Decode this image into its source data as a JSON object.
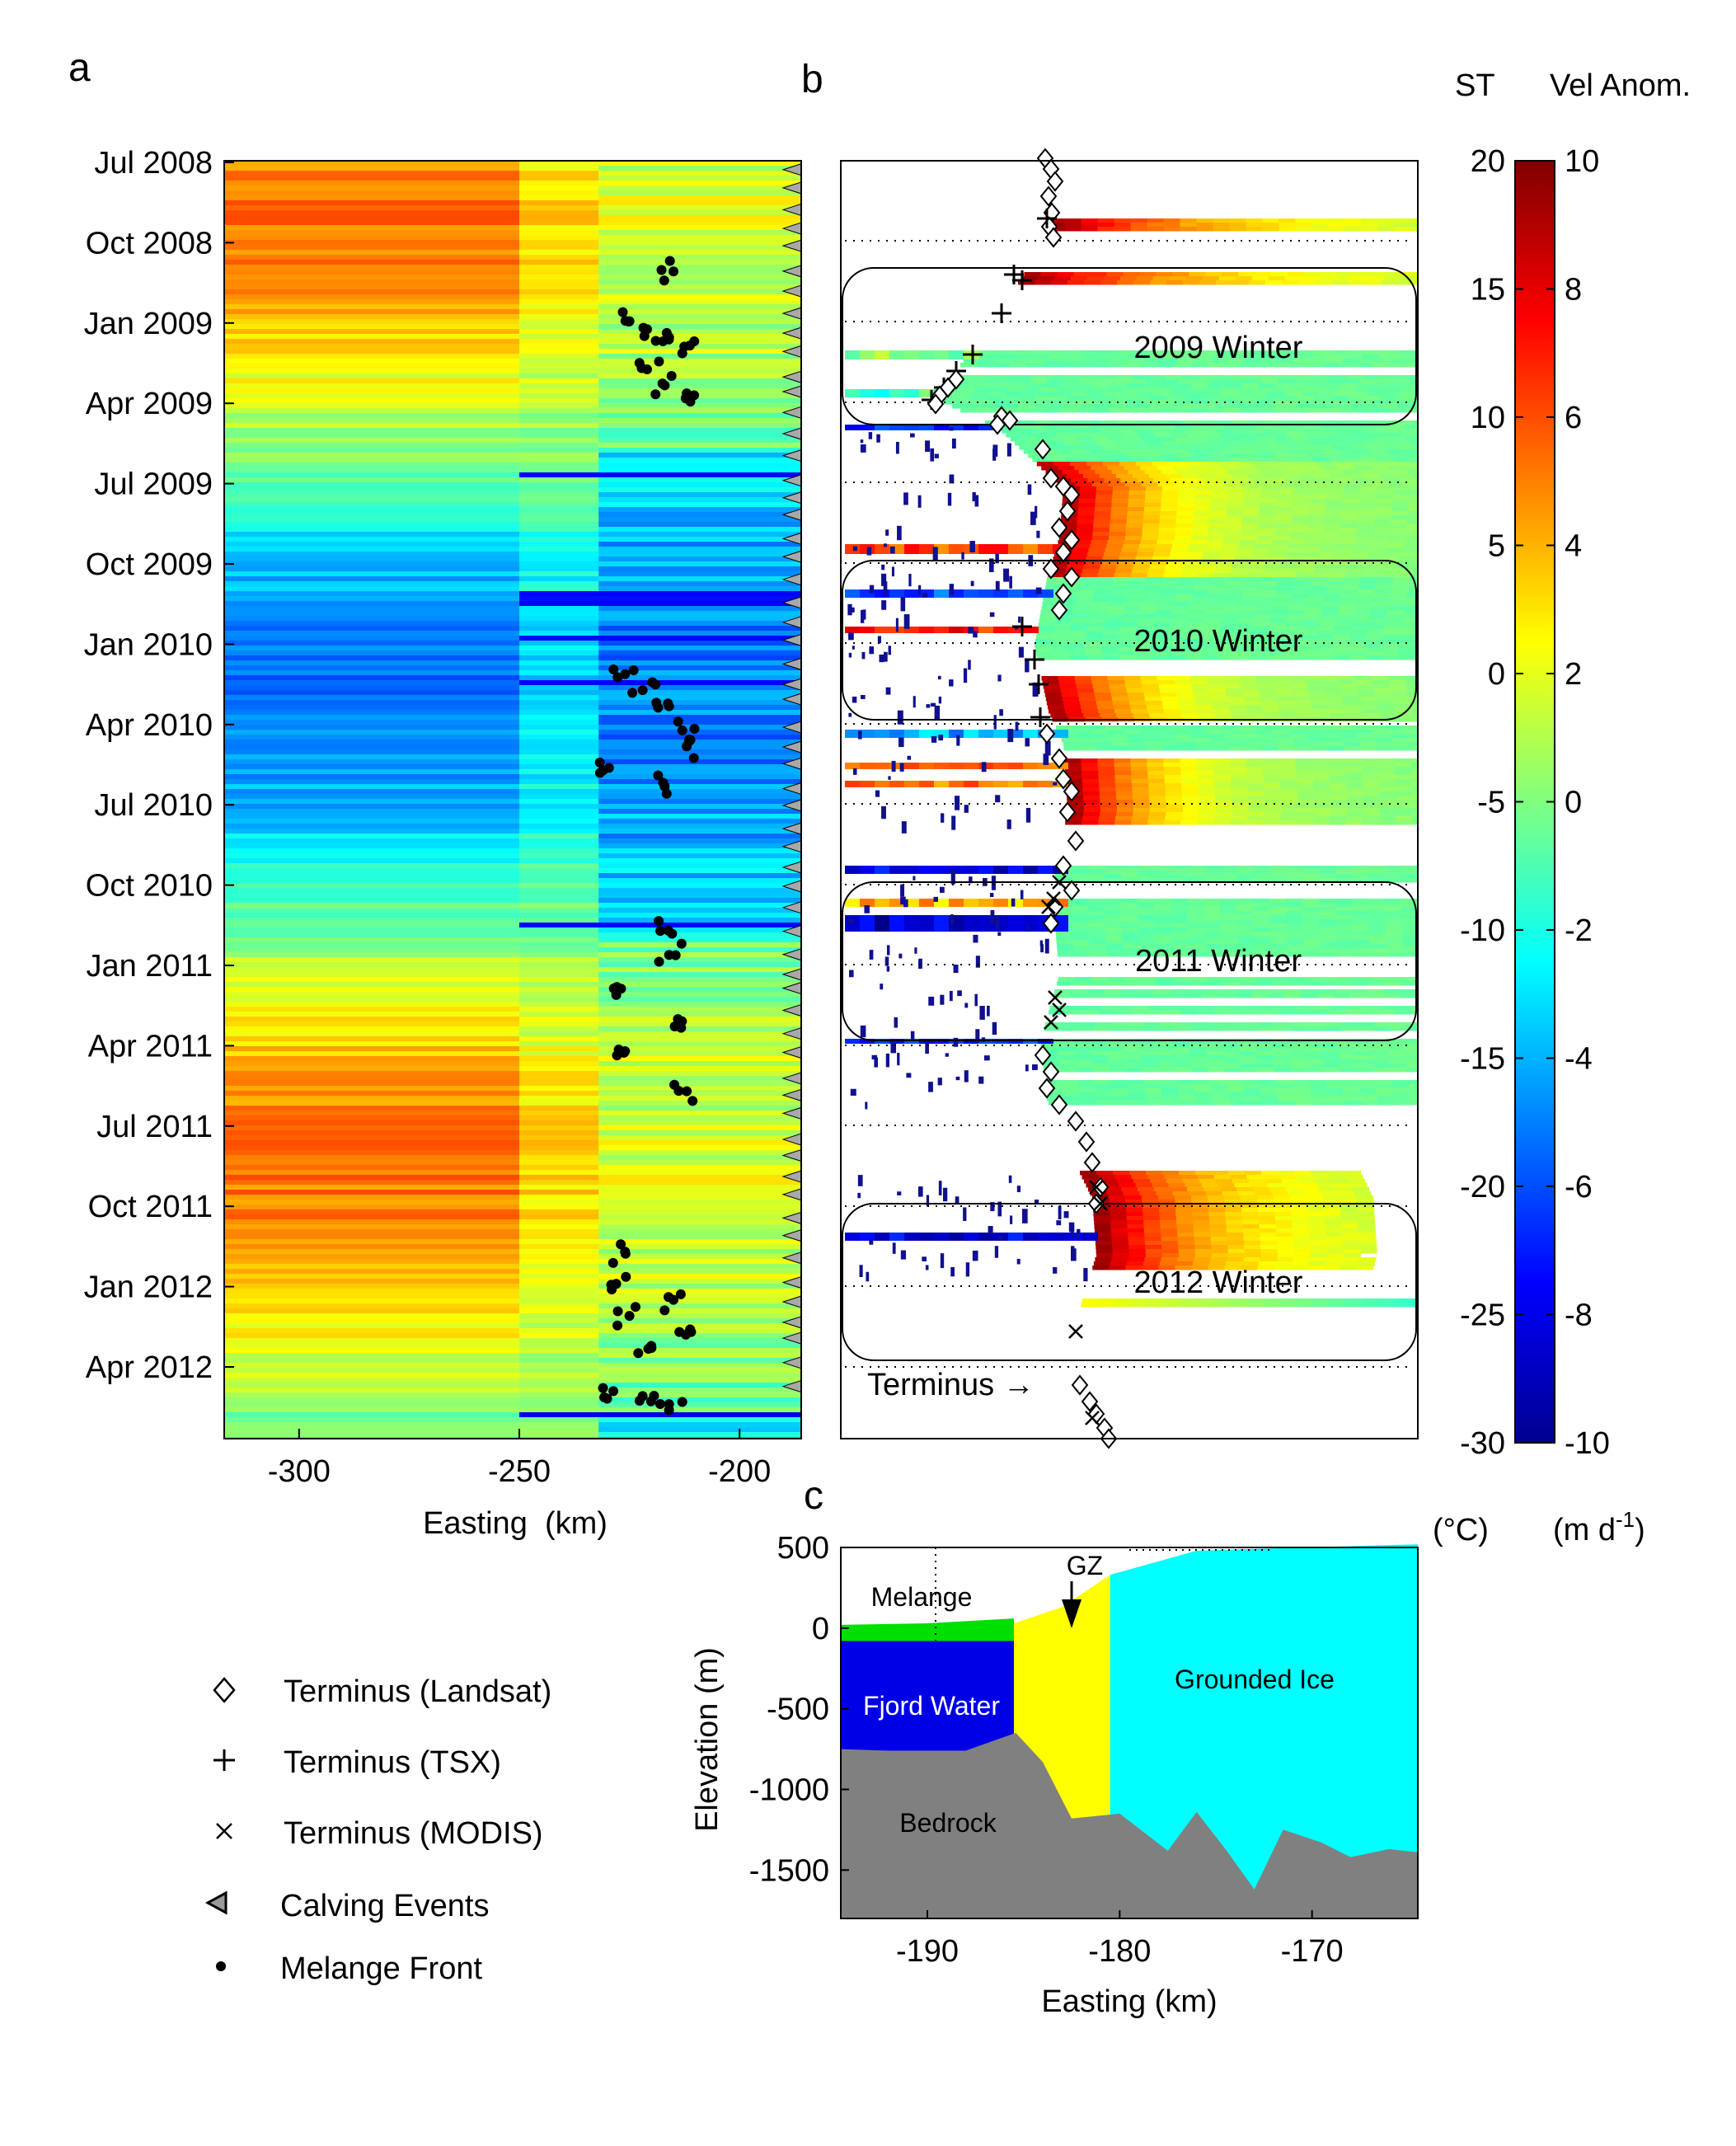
{
  "panel_labels": {
    "a": "a",
    "b": "b",
    "c": "c"
  },
  "colorbar_headers": {
    "st": "ST",
    "vel": "Vel Anom."
  },
  "colorbar_units": {
    "st": "(°C)",
    "vel_base": "(m d",
    "vel_sup": "-1",
    "vel_close": ")"
  },
  "panel_a": {
    "y_ticks": [
      "Jul 2008",
      "Oct 2008",
      "Jan 2009",
      "Apr 2009",
      "Jul 2009",
      "Oct 2009",
      "Jan 2010",
      "Apr 2010",
      "Jul 2010",
      "Oct 2010",
      "Jan 2011",
      "Apr 2011",
      "Jul 2011",
      "Oct 2011",
      "Jan 2012",
      "Apr 2012"
    ],
    "x_ticks": [
      "-300",
      "-250",
      "-200"
    ],
    "xlabel": "Easting  (km)"
  },
  "panel_b": {
    "winter_labels": [
      "2009 Winter",
      "2010 Winter",
      "2011 Winter",
      "2012 Winter"
    ],
    "terminus_label": "Terminus →"
  },
  "colorbar": {
    "st_ticks": [
      "20",
      "15",
      "10",
      "5",
      "0",
      "-5",
      "-10",
      "-15",
      "-20",
      "-25",
      "-30"
    ],
    "vel_ticks": [
      "10",
      "8",
      "6",
      "4",
      "2",
      "0",
      "-2",
      "-4",
      "-6",
      "-8",
      "-10"
    ],
    "colors": [
      "#00008f",
      "#0000ff",
      "#0080ff",
      "#00ffff",
      "#80ff80",
      "#ffff00",
      "#ff8000",
      "#ff0000",
      "#800000"
    ]
  },
  "panel_c": {
    "x_ticks": [
      "-190",
      "-180",
      "-170"
    ],
    "y_ticks": [
      "500",
      "0",
      "-500",
      "-1000",
      "-1500"
    ],
    "xlabel": "Easting (km)",
    "ylabel": "Elevation (m)",
    "regions": {
      "melange": "Melange",
      "gz": "GZ",
      "fjord": "Fjord Water",
      "grounded": "Grounded Ice",
      "bedrock": "Bedrock"
    }
  },
  "legend": [
    {
      "marker": "◇",
      "label": "Terminus (Landsat)"
    },
    {
      "marker": "+",
      "label": "Terminus (TSX)"
    },
    {
      "marker": "×",
      "label": "Terminus (MODIS)"
    },
    {
      "marker": "◁",
      "label": "Calving Events"
    },
    {
      "marker": "•",
      "label": "Melange Front"
    }
  ],
  "chart_data": [
    {
      "type": "heatmap",
      "panel": "a",
      "xlabel": "Easting  (km)",
      "ylabel": "",
      "xlim": [
        -317,
        -186
      ],
      "ytime_range": [
        "Jun 2008",
        "Jun 2012"
      ],
      "x_ticks": [
        -300,
        -250,
        -200
      ],
      "y_ticks": [
        "Jul 2008",
        "Oct 2008",
        "Jan 2009",
        "Apr 2009",
        "Jul 2009",
        "Oct 2009",
        "Jan 2010",
        "Apr 2010",
        "Jul 2010",
        "Oct 2010",
        "Jan 2011",
        "Apr 2011",
        "Jul 2011",
        "Oct 2011",
        "Jan 2012",
        "Apr 2012"
      ],
      "colorbar": "Vel Anom. (m d-1)",
      "clim": [
        -10,
        10
      ],
      "melange_front": [
        {
          "x": -215,
          "t": 1.38
        },
        {
          "x": -225,
          "t": 2.0
        },
        {
          "x": -221,
          "t": 2.1
        },
        {
          "x": -216,
          "t": 2.2
        },
        {
          "x": -213,
          "t": 2.4
        },
        {
          "x": -221,
          "t": 2.6
        },
        {
          "x": -217,
          "t": 2.8
        },
        {
          "x": -212,
          "t": 2.9
        },
        {
          "x": -226,
          "t": 6.4
        },
        {
          "x": -222,
          "t": 6.6
        },
        {
          "x": -216,
          "t": 6.8
        },
        {
          "x": -213,
          "t": 7.1
        },
        {
          "x": -212,
          "t": 7.3
        },
        {
          "x": -231,
          "t": 7.6
        },
        {
          "x": -217,
          "t": 7.8
        },
        {
          "x": -218,
          "t": 9.6
        },
        {
          "x": -216,
          "t": 9.9
        },
        {
          "x": -228,
          "t": 10.4
        },
        {
          "x": -214,
          "t": 10.7
        },
        {
          "x": -226,
          "t": 11.1
        },
        {
          "x": -212,
          "t": 11.6
        },
        {
          "x": -226,
          "t": 13.6
        },
        {
          "x": -228,
          "t": 14.0
        },
        {
          "x": -215,
          "t": 14.2
        },
        {
          "x": -225,
          "t": 14.4
        },
        {
          "x": -211,
          "t": 14.6
        },
        {
          "x": -220,
          "t": 14.8
        },
        {
          "x": -231,
          "t": 15.3
        },
        {
          "x": -222,
          "t": 15.4
        },
        {
          "x": -216,
          "t": 15.5
        }
      ]
    },
    {
      "type": "heatmap",
      "panel": "b",
      "colorbar": "ST (°C)",
      "clim": [
        -30,
        20
      ],
      "winters": [
        "2009 Winter",
        "2010 Winter",
        "2011 Winter",
        "2012 Winter"
      ],
      "terminus_series": [
        "Terminus (Landsat)",
        "Terminus (TSX)",
        "Terminus (MODIS)"
      ]
    },
    {
      "type": "area",
      "panel": "c",
      "xlim": [
        -194.5,
        -164.5
      ],
      "ylim": [
        -1800,
        500
      ],
      "x_ticks": [
        -190,
        -180,
        -170
      ],
      "y_ticks": [
        500,
        0,
        -500,
        -1000,
        -1500
      ],
      "xlabel": "Easting (km)",
      "ylabel": "Elevation (m)",
      "bedrock_profile": [
        {
          "x": -194.5,
          "y": -750
        },
        {
          "x": -192,
          "y": -760
        },
        {
          "x": -188,
          "y": -760
        },
        {
          "x": -186.6,
          "y": -700
        },
        {
          "x": -185.4,
          "y": -650
        },
        {
          "x": -184,
          "y": -830
        },
        {
          "x": -182.5,
          "y": -1180
        },
        {
          "x": -180,
          "y": -1150
        },
        {
          "x": -177.5,
          "y": -1380
        },
        {
          "x": -176,
          "y": -1140
        },
        {
          "x": -174.5,
          "y": -1370
        },
        {
          "x": -173,
          "y": -1620
        },
        {
          "x": -171.5,
          "y": -1250
        },
        {
          "x": -169.5,
          "y": -1330
        },
        {
          "x": -168,
          "y": -1420
        },
        {
          "x": -166,
          "y": -1370
        },
        {
          "x": -164.5,
          "y": -1390
        }
      ],
      "ice_surface": [
        {
          "x": -185.5,
          "y": 30
        },
        {
          "x": -183,
          "y": 130
        },
        {
          "x": -180.5,
          "y": 330
        },
        {
          "x": -176,
          "y": 480
        },
        {
          "x": -164.5,
          "y": 520
        }
      ],
      "grounding_zone_x": -183,
      "grounded_ice_start_x": -180.5,
      "melange_top": 50,
      "fjord_water_top": -80
    }
  ]
}
